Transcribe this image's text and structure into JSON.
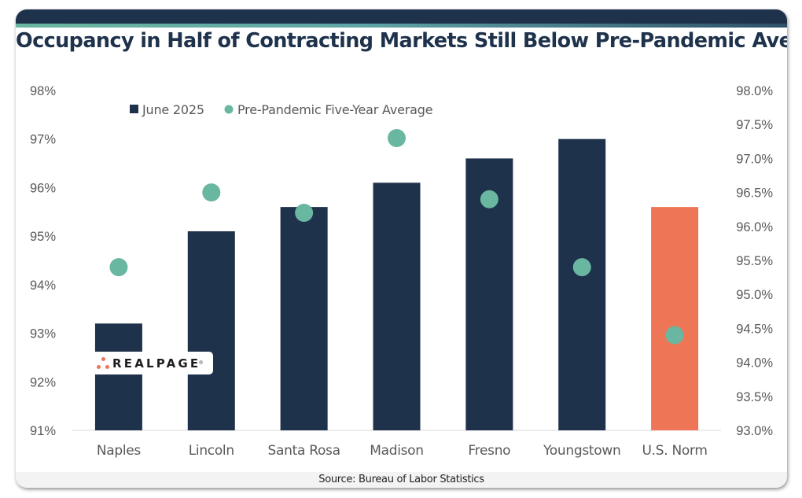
{
  "chart_data": {
    "type": "bar",
    "title": "Occupancy in Half of Contracting Markets Still Below Pre-Pandemic Average",
    "source": "Source: Bureau of Labor Statistics",
    "categories": [
      "Naples",
      "Lincoln",
      "Santa Rosa",
      "Madison",
      "Fresno",
      "Youngstown",
      "U.S. Norm"
    ],
    "series": [
      {
        "name": "June 2025",
        "kind": "bar",
        "axis": "left",
        "color": "#1f324c",
        "highlight": {
          "category": "U.S. Norm",
          "color": "#ee7656"
        },
        "values": [
          93.2,
          95.1,
          95.6,
          96.1,
          96.6,
          97.0,
          95.6
        ]
      },
      {
        "name": "Pre-Pandemic Five-Year Average",
        "kind": "scatter",
        "axis": "right",
        "color": "#69b7a0",
        "values": [
          95.4,
          96.5,
          96.2,
          97.3,
          96.4,
          95.4,
          94.4
        ]
      }
    ],
    "left_axis": {
      "min": 91,
      "max": 98,
      "ticks": [
        98,
        97,
        96,
        95,
        94,
        93,
        92,
        91
      ],
      "tick_labels": [
        "98%",
        "97%",
        "96%",
        "95%",
        "94%",
        "93%",
        "92%",
        "91%"
      ]
    },
    "right_axis": {
      "min": 93,
      "max": 98,
      "ticks": [
        98.0,
        97.5,
        97.0,
        96.5,
        96.0,
        95.5,
        95.0,
        94.5,
        94.0,
        93.5,
        93.0
      ],
      "tick_labels": [
        "98.0%",
        "97.5%",
        "97.0%",
        "96.5%",
        "96.0%",
        "95.5%",
        "95.0%",
        "94.5%",
        "94.0%",
        "93.5%",
        "93.0%"
      ]
    },
    "xlabel": "",
    "ylabel": "",
    "grid": false,
    "legend": {
      "position": "top-left",
      "entries": [
        "June 2025",
        "Pre-Pandemic Five-Year Average"
      ]
    }
  },
  "logo": {
    "text": "REALPAGE",
    "tm": "®"
  }
}
